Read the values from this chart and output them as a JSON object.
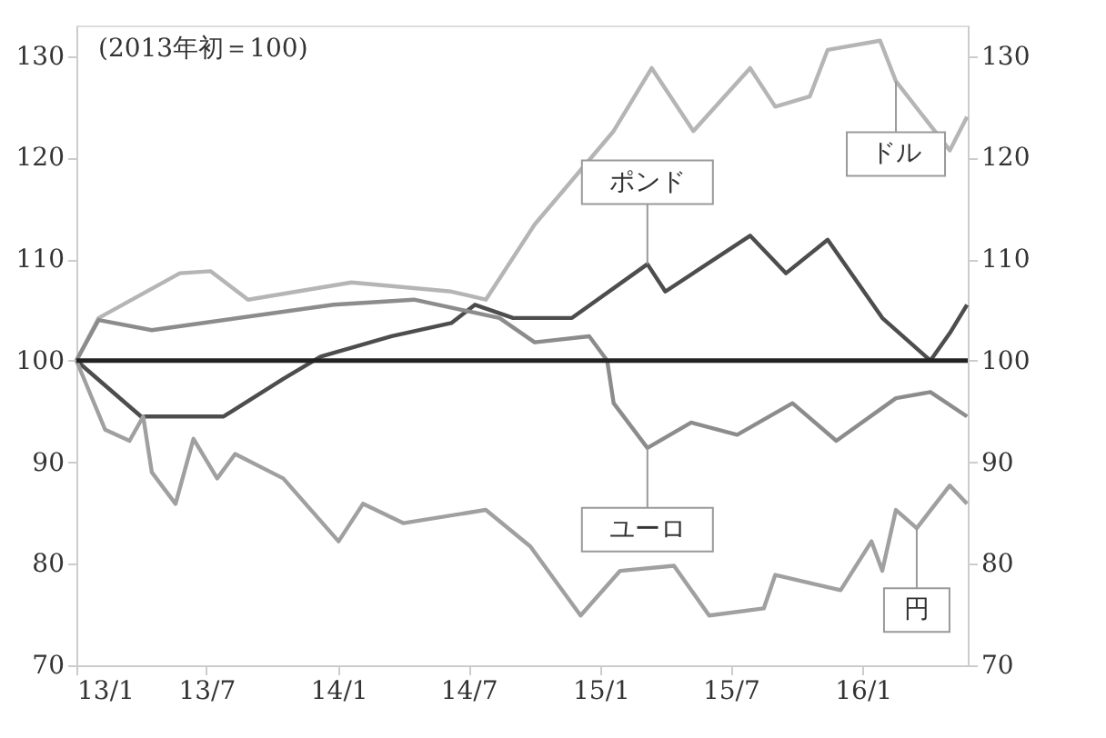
{
  "chart_data": {
    "type": "line",
    "subtitle": "(2013年初＝100)",
    "xlim": [
      "2013-01-01",
      "2016-05-26"
    ],
    "xticks": [
      {
        "value": "2013-01-01",
        "label": "13/1"
      },
      {
        "value": "2013-07-01",
        "label": "13/7"
      },
      {
        "value": "2014-01-01",
        "label": "14/1"
      },
      {
        "value": "2014-07-01",
        "label": "14/7"
      },
      {
        "value": "2015-01-01",
        "label": "15/1"
      },
      {
        "value": "2015-07-01",
        "label": "15/7"
      },
      {
        "value": "2016-01-01",
        "label": "16/1"
      }
    ],
    "ylim": [
      70,
      133
    ],
    "yticks": [
      70,
      80,
      90,
      100,
      110,
      120,
      130
    ],
    "y2lim": [
      70,
      133
    ],
    "y2ticks": [
      70,
      80,
      90,
      100,
      110,
      120,
      130
    ],
    "grid": false,
    "legend": false,
    "line_style": "solid",
    "marker": "none",
    "series": [
      {
        "color": "#b5b5b5",
        "x": [
          "2013-01-01",
          "2013-02-01",
          "2013-05-25",
          "2013-07-07",
          "2013-08-28",
          "2013-11-04",
          "2014-01-19",
          "2014-06-07",
          "2014-07-25",
          "2014-10-01",
          "2015-01-19",
          "2015-03-13",
          "2015-05-10",
          "2015-07-28",
          "2015-09-01",
          "2015-10-19",
          "2015-11-13",
          "2016-01-25",
          "2016-02-16",
          "2016-05-01",
          "2016-05-25"
        ],
        "values": [
          100,
          104.2,
          108.6,
          108.8,
          106,
          106.8,
          107.7,
          106.8,
          106,
          113.4,
          122.6,
          128.8,
          122.6,
          128.8,
          125,
          126,
          130.6,
          131.5,
          127.5,
          120.7,
          124
        ]
      },
      {
        "color": "#4d4d4d",
        "x": [
          "2013-01-01",
          "2013-04-01",
          "2013-07-25",
          "2013-10-16",
          "2013-12-07",
          "2014-03-16",
          "2014-06-07",
          "2014-07-10",
          "2014-09-01",
          "2014-11-22",
          "2015-03-07",
          "2015-04-01",
          "2015-07-28",
          "2015-09-16",
          "2015-11-13",
          "2016-01-28",
          "2016-04-04",
          "2016-05-01",
          "2016-05-25"
        ],
        "values": [
          100,
          94.5,
          94.5,
          98.2,
          100.4,
          102.4,
          103.7,
          105.5,
          104.2,
          104.2,
          109.5,
          106.8,
          112.3,
          108.6,
          111.9,
          104.2,
          100,
          102.7,
          105.5
        ]
      },
      {
        "color": "#8c8c8c",
        "x": [
          "2013-01-01",
          "2013-02-01",
          "2013-04-16",
          "2013-12-25",
          "2014-04-16",
          "2014-08-13",
          "2014-10-01",
          "2014-12-16",
          "2015-01-10",
          "2015-01-19",
          "2015-03-07",
          "2015-05-07",
          "2015-07-10",
          "2015-09-25",
          "2015-11-25",
          "2016-02-16",
          "2016-04-04",
          "2016-05-25"
        ],
        "values": [
          100,
          104,
          103,
          105.5,
          106,
          104.2,
          101.8,
          102.4,
          100,
          95.8,
          91.4,
          93.9,
          92.7,
          95.8,
          92.1,
          96.3,
          96.9,
          94.5
        ]
      },
      {
        "color": "#a0a0a0",
        "x": [
          "2013-01-01",
          "2013-02-10",
          "2013-03-16",
          "2013-04-04",
          "2013-04-16",
          "2013-05-19",
          "2013-06-13",
          "2013-07-16",
          "2013-08-10",
          "2013-10-16",
          "2014-01-01",
          "2014-02-04",
          "2014-04-01",
          "2014-07-25",
          "2014-09-25",
          "2014-12-04",
          "2015-01-28",
          "2015-04-13",
          "2015-06-01",
          "2015-08-16",
          "2015-09-01",
          "2015-12-01",
          "2016-01-13",
          "2016-01-28",
          "2016-02-16",
          "2016-03-16",
          "2016-05-01",
          "2016-05-25"
        ],
        "values": [
          100,
          93.2,
          92.1,
          94.5,
          89,
          85.9,
          92.3,
          88.4,
          90.8,
          88.4,
          82.2,
          85.9,
          84,
          85.3,
          81.7,
          74.9,
          79.3,
          79.8,
          74.9,
          75.6,
          78.9,
          77.4,
          82.2,
          79.3,
          85.3,
          83.5,
          87.7,
          85.9
        ]
      }
    ],
    "ref_lines": [
      {
        "axis": "y",
        "value": 100,
        "color": "#222222",
        "line_style": "solid"
      }
    ],
    "annotations": [
      {
        "text": "ドル",
        "x": "2016-02-16",
        "y": 127.5
      },
      {
        "text": "ポンド",
        "x": "2015-03-07",
        "y": 109.5
      },
      {
        "text": "ユーロ",
        "x": "2015-03-07",
        "y": 91.4
      },
      {
        "text": "円",
        "x": "2016-03-16",
        "y": 83.5
      }
    ]
  }
}
